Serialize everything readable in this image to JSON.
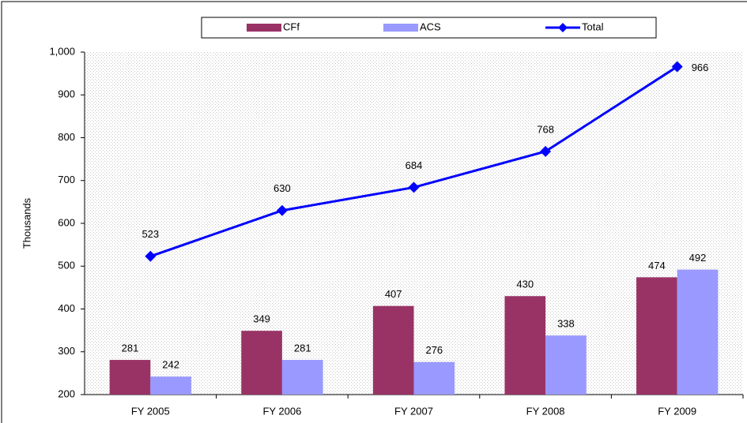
{
  "chart_data": {
    "type": "bar",
    "y_label": "Thousands",
    "categories": [
      "FY 2005",
      "FY 2006",
      "FY 2007",
      "FY 2008",
      "FY 2009"
    ],
    "series": [
      {
        "name": "CFf",
        "type": "bar",
        "color": "#993366",
        "values": [
          281,
          349,
          407,
          430,
          474
        ]
      },
      {
        "name": "ACS",
        "type": "bar",
        "color": "#9999ff",
        "values": [
          242,
          281,
          276,
          338,
          492
        ]
      },
      {
        "name": "Total",
        "type": "line",
        "color": "#0000ff",
        "values": [
          523,
          630,
          684,
          768,
          966
        ]
      }
    ],
    "ylim": [
      200,
      1000
    ],
    "yticks": [
      200,
      300,
      400,
      500,
      600,
      700,
      800,
      900,
      {
        "value": 1000,
        "label": "1,000"
      }
    ],
    "legend": "top"
  }
}
